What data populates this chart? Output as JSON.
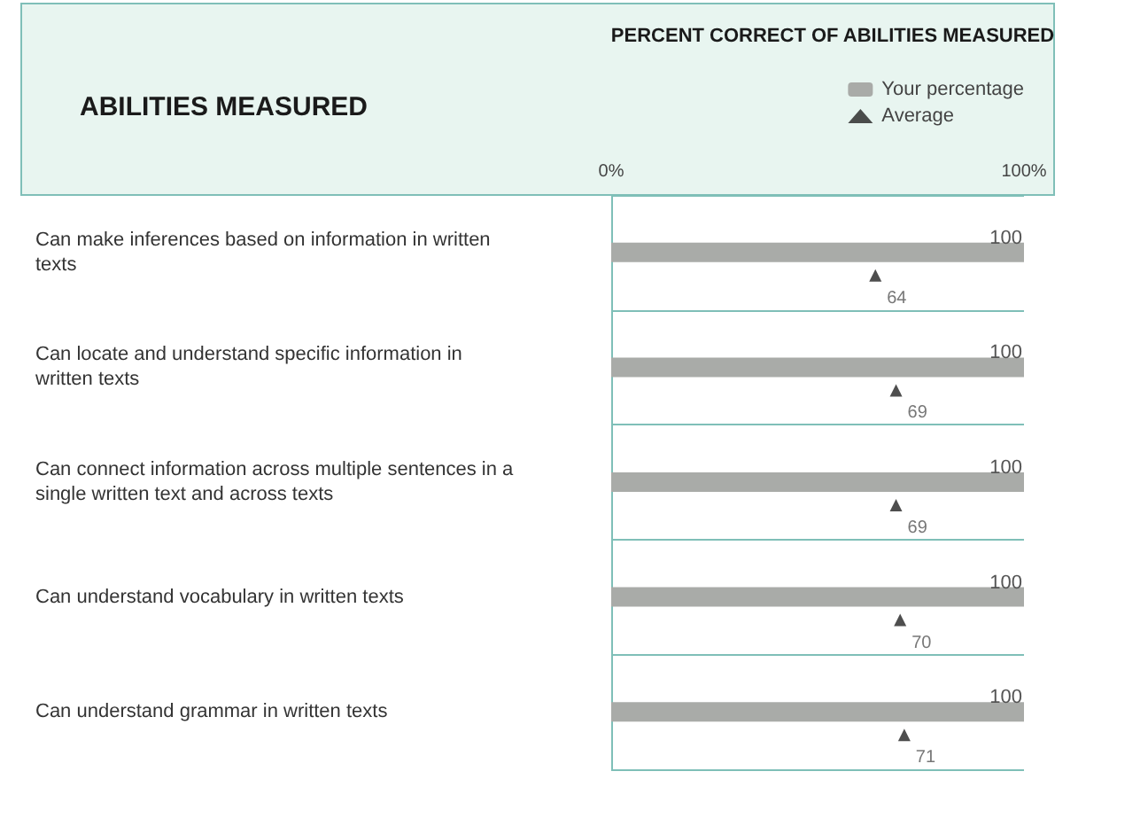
{
  "chart_data": {
    "type": "bar",
    "orientation": "horizontal",
    "title": "PERCENT CORRECT OF ABILITIES MEASURED",
    "ylabel": "ABILITIES MEASURED",
    "categories": [
      "Can make inferences based on information in written texts",
      "Can locate and understand specific information in written texts",
      "Can connect information across multiple sentences in a single written text and across texts",
      "Can understand vocabulary in written texts",
      "Can understand grammar in written texts"
    ],
    "series": [
      {
        "name": "Your percentage",
        "type": "bar",
        "color": "#a9aba8",
        "values": [
          100,
          100,
          100,
          100,
          100
        ]
      },
      {
        "name": "Average",
        "type": "scatter",
        "marker": "triangle",
        "color": "#222222",
        "values": [
          64,
          69,
          69,
          70,
          71
        ]
      }
    ],
    "xlim": [
      0,
      100
    ],
    "xticks": [
      {
        "value": 0,
        "label": "0%"
      },
      {
        "value": 100,
        "label": "100%"
      }
    ],
    "data_labels": true,
    "grid": "y",
    "legend": "top right"
  }
}
